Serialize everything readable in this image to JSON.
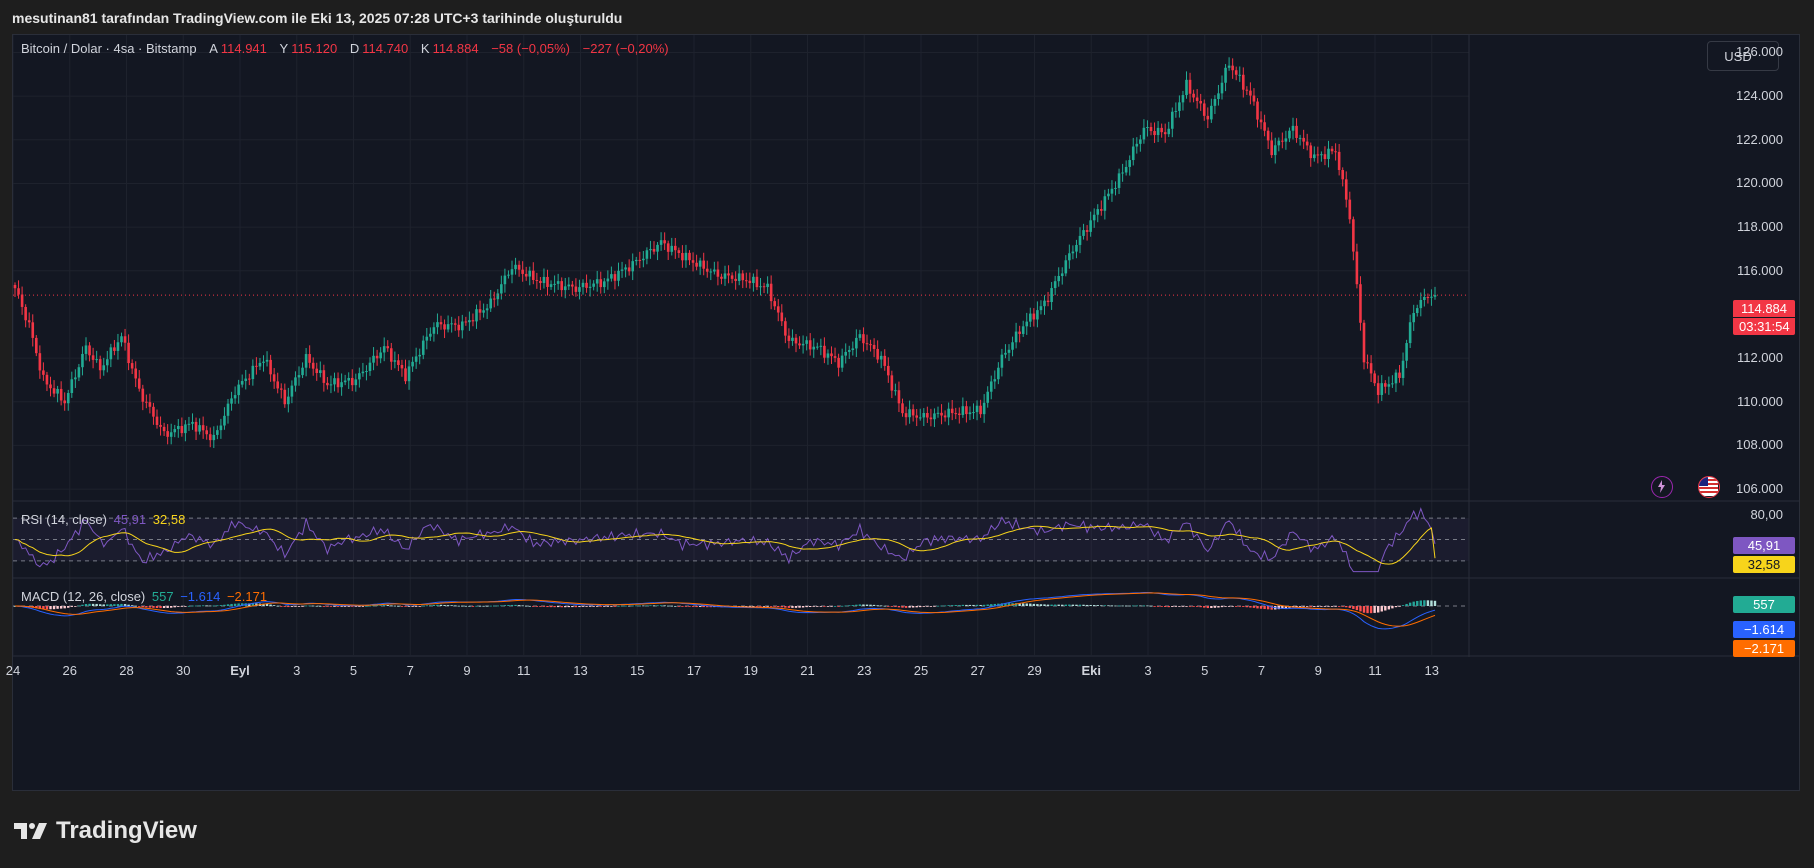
{
  "header": {
    "caption": "mesutinan81 tarafından TradingView.com ile Eki 13, 2025 07:28 UTC+3 tarihinde oluşturuldu"
  },
  "legend": {
    "symbol": "Bitcoin / Dolar · 4sa · Bitstamp",
    "open_label": "A",
    "open": "114.941",
    "high_label": "Y",
    "high": "115.120",
    "low_label": "D",
    "low": "114.740",
    "close_label": "K",
    "close": "114.884",
    "change": "−58 (−0,05%)",
    "change2": "−227 (−0,20%)"
  },
  "currency_button": "USD",
  "price_axis": [
    "126.000",
    "124.000",
    "122.000",
    "120.000",
    "118.000",
    "116.000",
    "112.000",
    "110.000",
    "108.000",
    "106.000"
  ],
  "last_price": {
    "value": "114.884",
    "countdown": "03:31:54"
  },
  "rsi": {
    "label": "RSI (14, close)",
    "value": "45,91",
    "ma": "32,58",
    "axis_label": "80,00"
  },
  "macd": {
    "label": "MACD (12, 26, close)",
    "hist": "557",
    "macd": "−1.614",
    "signal": "−2.171"
  },
  "time_axis": [
    "24",
    "26",
    "28",
    "30",
    "Eyl",
    "3",
    "5",
    "7",
    "9",
    "11",
    "13",
    "15",
    "17",
    "19",
    "21",
    "23",
    "25",
    "27",
    "29",
    "Eki",
    "3",
    "5",
    "7",
    "9",
    "11",
    "13"
  ],
  "colors": {
    "up": "#22ab94",
    "down": "#f23645",
    "background": "#131722",
    "rsi_line": "#7e57c2",
    "rsi_ma": "#f7d41b",
    "macd_line": "#2962ff",
    "signal_line": "#ff6d00"
  },
  "brand": "TradingView",
  "icons": [
    "lightning-icon",
    "us-flag-icon",
    "tradingview-logo-icon"
  ],
  "chart_data": {
    "type": "candlestick",
    "title": "Bitcoin / Dolar · 4sa · Bitstamp",
    "ylim": [
      105500,
      126800
    ],
    "x_range": [
      "Ağu 24",
      "Eki 13"
    ],
    "last_close": 114884,
    "anchors": [
      [
        0,
        115200
      ],
      [
        4,
        113500
      ],
      [
        8,
        111000
      ],
      [
        14,
        110000
      ],
      [
        20,
        112500
      ],
      [
        24,
        111500
      ],
      [
        30,
        113000
      ],
      [
        35,
        110500
      ],
      [
        42,
        108500
      ],
      [
        50,
        109000
      ],
      [
        56,
        108300
      ],
      [
        62,
        110500
      ],
      [
        70,
        112000
      ],
      [
        76,
        110000
      ],
      [
        82,
        112000
      ],
      [
        88,
        110800
      ],
      [
        96,
        111000
      ],
      [
        104,
        112500
      ],
      [
        110,
        111200
      ],
      [
        118,
        113500
      ],
      [
        126,
        113500
      ],
      [
        134,
        114500
      ],
      [
        140,
        116200
      ],
      [
        148,
        115500
      ],
      [
        158,
        115200
      ],
      [
        166,
        115500
      ],
      [
        174,
        116300
      ],
      [
        182,
        117300
      ],
      [
        190,
        116500
      ],
      [
        198,
        115800
      ],
      [
        206,
        115600
      ],
      [
        212,
        115200
      ],
      [
        218,
        112800
      ],
      [
        226,
        112500
      ],
      [
        232,
        111800
      ],
      [
        238,
        113000
      ],
      [
        244,
        112000
      ],
      [
        250,
        109500
      ],
      [
        256,
        109300
      ],
      [
        264,
        109500
      ],
      [
        272,
        109600
      ],
      [
        278,
        112000
      ],
      [
        284,
        113500
      ],
      [
        290,
        114500
      ],
      [
        298,
        117000
      ],
      [
        306,
        119000
      ],
      [
        312,
        120500
      ],
      [
        318,
        122500
      ],
      [
        324,
        122300
      ],
      [
        330,
        124500
      ],
      [
        336,
        123000
      ],
      [
        342,
        125500
      ],
      [
        348,
        124000
      ],
      [
        354,
        121500
      ],
      [
        360,
        122500
      ],
      [
        366,
        121200
      ],
      [
        372,
        121500
      ],
      [
        376,
        118500
      ],
      [
        380,
        112000
      ],
      [
        384,
        110500
      ],
      [
        390,
        111200
      ],
      [
        394,
        114200
      ],
      [
        398,
        114900
      ],
      [
        400,
        114884
      ]
    ]
  }
}
